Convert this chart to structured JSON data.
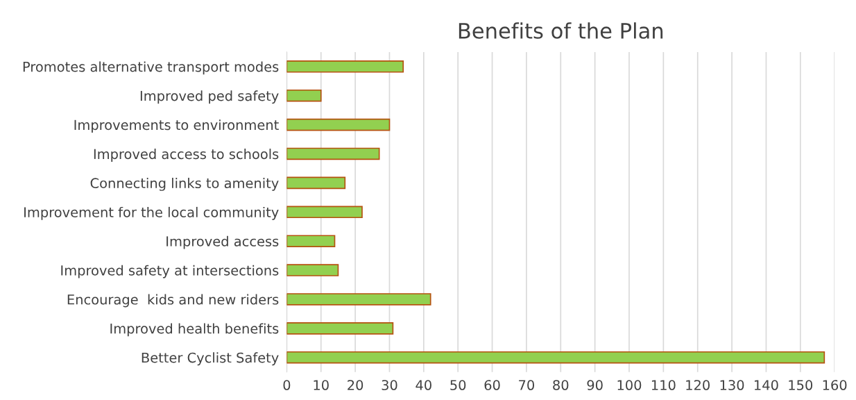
{
  "chart_data": {
    "type": "bar",
    "title": "Benefits of the Plan",
    "orientation": "horizontal",
    "categories": [
      "Promotes alternative transport modes",
      "Improved ped safety",
      "Improvements to environment",
      "Improved access to schools",
      "Connecting links to amenity",
      "Improvement for the local community",
      "Improved access",
      "Improved safety at intersections",
      "Encourage  kids and new riders",
      "Improved health benefits",
      "Better Cyclist Safety"
    ],
    "values": [
      34,
      10,
      30,
      27,
      17,
      22,
      14,
      15,
      42,
      31,
      157
    ],
    "color": "#92d050",
    "xlim": [
      0,
      160
    ],
    "xticks": [
      0,
      10,
      20,
      30,
      40,
      50,
      60,
      70,
      80,
      90,
      100,
      110,
      120,
      130,
      140,
      150,
      160
    ],
    "grid": "x",
    "legend": false
  }
}
